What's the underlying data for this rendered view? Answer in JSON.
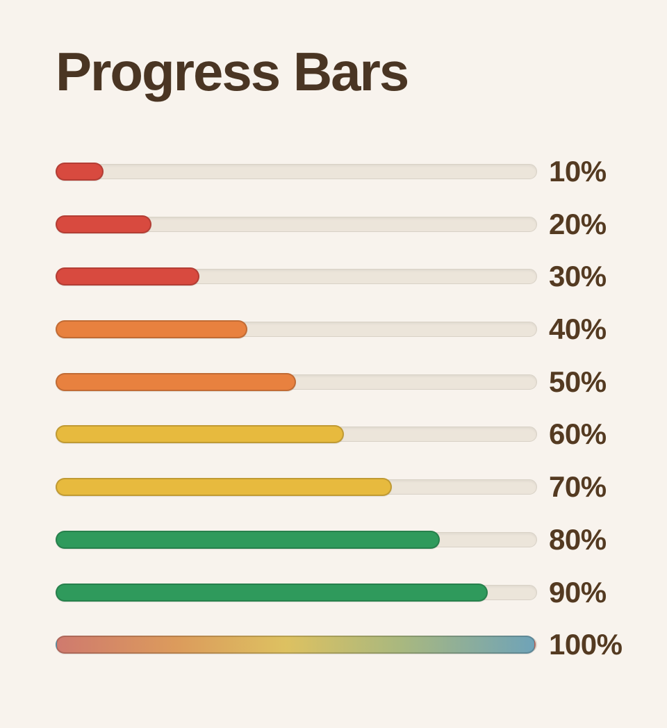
{
  "page": {
    "title": "Progress Bars",
    "background_color": "#f8f3ed",
    "title_color": "#4a3523",
    "label_color": "#543a21"
  },
  "track": {
    "color": "#ece5da",
    "border_color": "#d8d1c6"
  },
  "bars": [
    {
      "percent": 10,
      "label": "10%",
      "color": "#d84a3f"
    },
    {
      "percent": 20,
      "label": "20%",
      "color": "#d84a3f"
    },
    {
      "percent": 30,
      "label": "30%",
      "color": "#d84a3f"
    },
    {
      "percent": 40,
      "label": "40%",
      "color": "#e8813f"
    },
    {
      "percent": 50,
      "label": "50%",
      "color": "#e8813f"
    },
    {
      "percent": 60,
      "label": "60%",
      "color": "#e7ba3e"
    },
    {
      "percent": 70,
      "label": "70%",
      "color": "#e7ba3e"
    },
    {
      "percent": 80,
      "label": "80%",
      "color": "#2f9a5c"
    },
    {
      "percent": 90,
      "label": "90%",
      "color": "#2f9a5c"
    },
    {
      "percent": 100,
      "label": "100%",
      "gradient": [
        "#cf7a6e",
        "#dc9b5c",
        "#ddc161",
        "#a9b87f",
        "#6fa3b8"
      ]
    }
  ]
}
